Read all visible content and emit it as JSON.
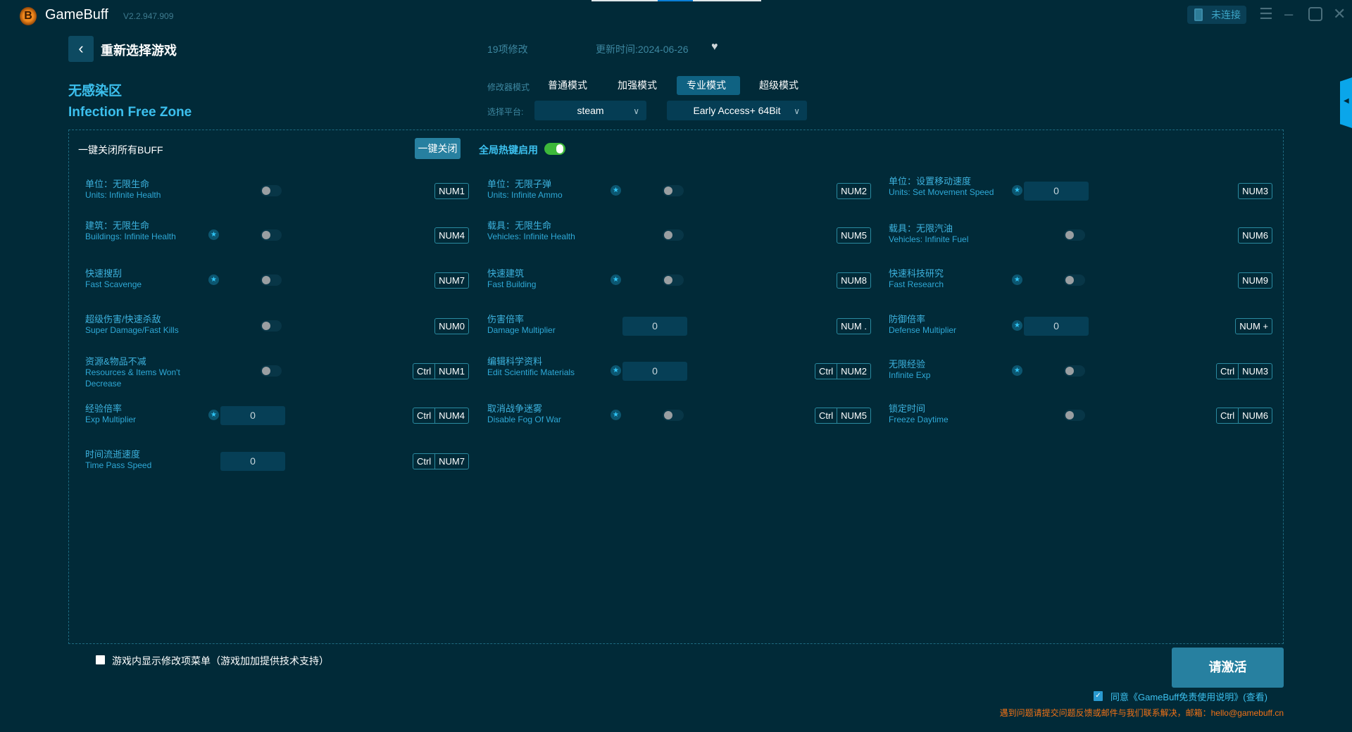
{
  "app": {
    "name": "GameBuff",
    "version": "V2.2.947.909",
    "connection": "未连接",
    "logo_letter": "B"
  },
  "header": {
    "back_label": "重新选择游戏",
    "mod_count": "19项修改",
    "updated": "更新时间:2024-06-26"
  },
  "game": {
    "name_cn": "无感染区",
    "name_en": "Infection Free Zone"
  },
  "modes": {
    "label": "修改器模式",
    "items": [
      "普通模式",
      "加强模式",
      "专业模式",
      "超级模式"
    ],
    "active": "专业模式"
  },
  "platform": {
    "label": "选择平台:",
    "value": "steam",
    "version": "Early Access+ 64Bit"
  },
  "toolbar": {
    "close_all_label": "一键关闭所有BUFF",
    "close_button": "一键关闭",
    "hotkey_label": "全局热键启用",
    "hotkey_enabled": true
  },
  "cheats": [
    {
      "cn": "单位：无限生命",
      "en": "Units: Infinite Health",
      "star": false,
      "type": "toggle",
      "keys": [
        "NUM1"
      ]
    },
    {
      "cn": "单位：无限子弹",
      "en": "Units: Infinite Ammo",
      "star": true,
      "type": "toggle",
      "keys": [
        "NUM2"
      ]
    },
    {
      "cn": "单位：设置移动速度",
      "en": "Units: Set Movement Speed",
      "star": true,
      "type": "input",
      "value": "0",
      "keys": [
        "NUM3"
      ]
    },
    {
      "cn": "建筑：无限生命",
      "en": "Buildings: Infinite Health",
      "star": true,
      "type": "toggle",
      "keys": [
        "NUM4"
      ]
    },
    {
      "cn": "载具：无限生命",
      "en": "Vehicles: Infinite Health",
      "star": false,
      "type": "toggle",
      "keys": [
        "NUM5"
      ]
    },
    {
      "cn": "载具：无限汽油",
      "en": "Vehicles: Infinite Fuel",
      "star": false,
      "type": "toggle",
      "keys": [
        "NUM6"
      ]
    },
    {
      "cn": "快速搜刮",
      "en": "Fast Scavenge",
      "star": true,
      "type": "toggle",
      "keys": [
        "NUM7"
      ]
    },
    {
      "cn": "快速建筑",
      "en": "Fast Building",
      "star": true,
      "type": "toggle",
      "keys": [
        "NUM8"
      ]
    },
    {
      "cn": "快速科技研究",
      "en": "Fast Research",
      "star": true,
      "type": "toggle",
      "keys": [
        "NUM9"
      ]
    },
    {
      "cn": "超级伤害/快速杀敌",
      "en": "Super Damage/Fast Kills",
      "star": false,
      "type": "toggle",
      "keys": [
        "NUM0"
      ]
    },
    {
      "cn": "伤害倍率",
      "en": "Damage Multiplier",
      "star": false,
      "type": "input",
      "value": "0",
      "keys": [
        "NUM ."
      ]
    },
    {
      "cn": "防御倍率",
      "en": "Defense Multiplier",
      "star": true,
      "type": "input",
      "value": "0",
      "keys": [
        "NUM +"
      ]
    },
    {
      "cn": "资源&物品不减",
      "en": "Resources & Items Won't Decrease",
      "star": false,
      "type": "toggle",
      "keys": [
        "Ctrl",
        "NUM1"
      ]
    },
    {
      "cn": "编辑科学资料",
      "en": "Edit Scientific Materials",
      "star": true,
      "type": "input",
      "value": "0",
      "keys": [
        "Ctrl",
        "NUM2"
      ]
    },
    {
      "cn": "无限经验",
      "en": "Infinite Exp",
      "star": true,
      "type": "toggle",
      "keys": [
        "Ctrl",
        "NUM3"
      ]
    },
    {
      "cn": "经验倍率",
      "en": "Exp Multiplier",
      "star": true,
      "type": "input",
      "value": "0",
      "keys": [
        "Ctrl",
        "NUM4"
      ]
    },
    {
      "cn": "取消战争迷雾",
      "en": "Disable Fog Of War",
      "star": true,
      "type": "toggle",
      "keys": [
        "Ctrl",
        "NUM5"
      ]
    },
    {
      "cn": "锁定时间",
      "en": "Freeze Daytime",
      "star": false,
      "type": "toggle",
      "keys": [
        "Ctrl",
        "NUM6"
      ]
    },
    {
      "cn": "时间流逝速度",
      "en": "Time Pass Speed",
      "star": false,
      "type": "input",
      "value": "0",
      "keys": [
        "Ctrl",
        "NUM7"
      ]
    }
  ],
  "footer": {
    "overlay_label": "游戏内显示修改项菜单（游戏加加提供技术支持）",
    "activate": "请激活",
    "agree": "同意《GameBuff免责使用说明》(查看)",
    "note": "遇到问题请提交问题反馈或邮件与我们联系解决，邮箱：hello@gamebuff.cn"
  },
  "colors": {
    "background": "#012a38",
    "accent": "#3cc0ee",
    "button": "#2780a0",
    "toggle_on": "#3db83a",
    "note": "#f37216"
  }
}
